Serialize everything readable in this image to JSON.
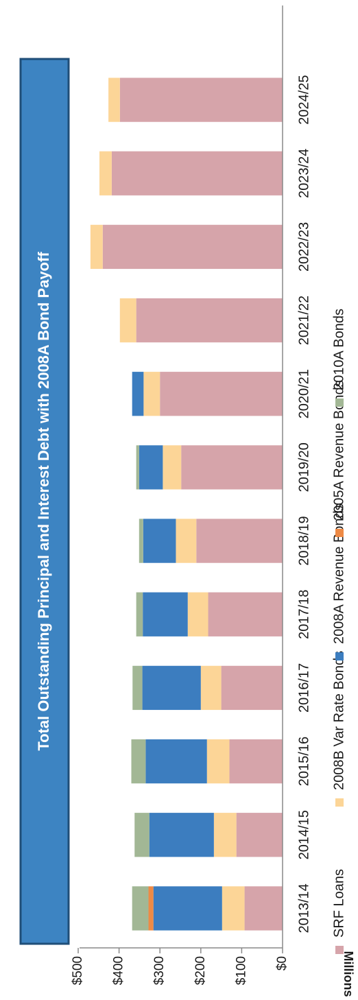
{
  "chart_data": {
    "type": "bar",
    "stacked": true,
    "orientation": "vertical (image rotated 90° counter-clockwise)",
    "title": "Total Outstanding Principal and Interest Debt with 2008A Bond Payoff",
    "ylabel": "Millions",
    "ylim": [
      0,
      500
    ],
    "yticks": [
      "$0",
      "$100",
      "$200",
      "$300",
      "$400",
      "$500"
    ],
    "categories": [
      "2013/14",
      "2014/15",
      "2015/16",
      "2016/17",
      "2017/18",
      "2018/19",
      "2019/20",
      "2020/21",
      "2021/22",
      "2022/23",
      "2023/24",
      "2024/25"
    ],
    "series": [
      {
        "name": "SRF Loans",
        "color": "#d6a4aa",
        "values": [
          93,
          113,
          130,
          150,
          182,
          211,
          248,
          300,
          358,
          440,
          418,
          398
        ]
      },
      {
        "name": "2008B Var Rate Bonds",
        "color": "#fcd597",
        "values": [
          55,
          55,
          55,
          50,
          50,
          50,
          45,
          40,
          40,
          30,
          30,
          28
        ]
      },
      {
        "name": "2008A Revenue Bonds",
        "color": "#3c7dbf",
        "values": [
          168,
          158,
          150,
          143,
          110,
          80,
          58,
          28,
          0,
          0,
          0,
          0
        ]
      },
      {
        "name": "2005A Revenue Bonds",
        "color": "#ee8a45",
        "values": [
          12,
          0,
          0,
          0,
          0,
          0,
          0,
          0,
          0,
          0,
          0,
          0
        ]
      },
      {
        "name": "2010A Bonds",
        "color": "#a2b795",
        "values": [
          40,
          36,
          35,
          24,
          16,
          10,
          7,
          0,
          0,
          0,
          0,
          0
        ]
      }
    ],
    "legend_position": "bottom",
    "grid": false
  }
}
